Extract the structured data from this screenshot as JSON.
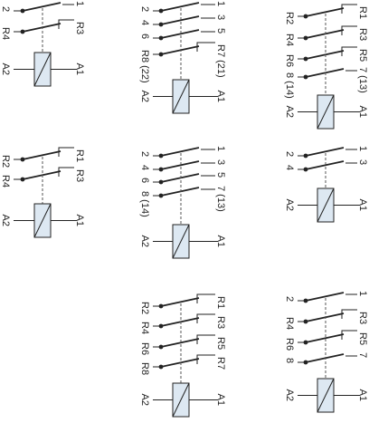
{
  "diagrams": [
    {
      "contacts": [
        {
          "left": "2",
          "right": "1"
        },
        {
          "left": "R4",
          "right": "R3"
        }
      ],
      "coil": {
        "left": "A2",
        "right": "A1"
      }
    },
    {
      "contacts": [
        {
          "left": "R2",
          "right": "R1"
        },
        {
          "left": "R4",
          "right": "R3"
        }
      ],
      "coil": {
        "left": "A2",
        "right": "A1"
      }
    },
    {
      "contacts": [
        {
          "left": "2",
          "right": "1"
        },
        {
          "left": "4",
          "right": "3"
        },
        {
          "left": "6",
          "right": "5"
        },
        {
          "left": "R8 (22)",
          "right": "R7 (21)"
        }
      ],
      "coil": {
        "left": "A2",
        "right": "A1"
      }
    },
    {
      "contacts": [
        {
          "left": "2",
          "right": "1"
        },
        {
          "left": "4",
          "right": "3"
        },
        {
          "left": "6",
          "right": "5"
        },
        {
          "left": "8 (14)",
          "right": "7 (13)"
        }
      ],
      "coil": {
        "left": "A2",
        "right": "A1"
      }
    },
    {
      "contacts": [
        {
          "left": "R2",
          "right": "R1"
        },
        {
          "left": "R4",
          "right": "R3"
        },
        {
          "left": "R6",
          "right": "R5"
        },
        {
          "left": "R8",
          "right": "R7"
        }
      ],
      "coil": {
        "left": "A2",
        "right": "A1"
      }
    },
    {
      "contacts": [
        {
          "left": "R2",
          "right": "R1"
        },
        {
          "left": "R4",
          "right": "R3"
        },
        {
          "left": "R6",
          "right": "R5"
        },
        {
          "left": "8 (14)",
          "right": "7 (13)"
        }
      ],
      "coil": {
        "left": "A2",
        "right": "A1"
      }
    },
    {
      "contacts": [
        {
          "left": "2",
          "right": "1"
        },
        {
          "left": "4",
          "right": "3"
        }
      ],
      "coil": {
        "left": "A2",
        "right": "A1"
      }
    },
    {
      "contacts": [
        {
          "left": "2",
          "right": "1"
        },
        {
          "left": "R4",
          "right": "R3"
        },
        {
          "left": "R6",
          "right": "R5"
        },
        {
          "left": "8",
          "right": "7"
        }
      ],
      "coil": {
        "left": "A2",
        "right": "A1"
      }
    }
  ]
}
